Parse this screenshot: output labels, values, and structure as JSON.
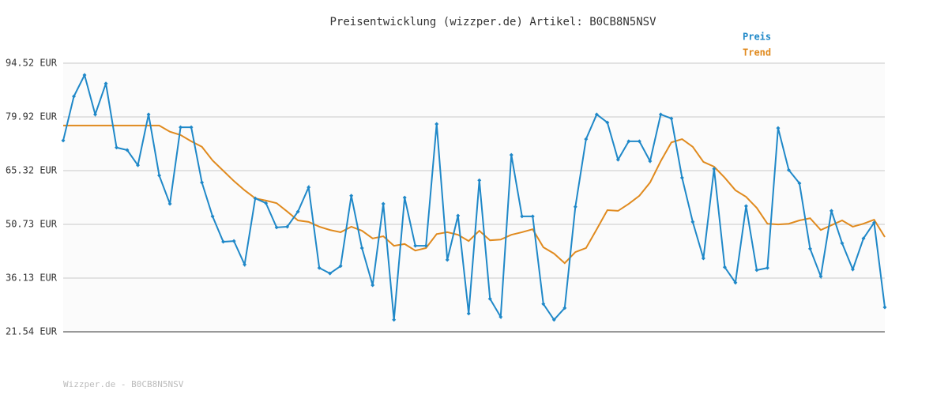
{
  "chart_data": {
    "type": "line",
    "title": "Preisentwicklung (wizzper.de) Artikel: B0CB8N5NSV",
    "footer": "Wizzper.de - B0CB8N5NSV",
    "ylim": [
      21.54,
      94.52
    ],
    "yticks": [
      {
        "value": 21.54,
        "label": "21.54 EUR"
      },
      {
        "value": 36.13,
        "label": "36.13 EUR"
      },
      {
        "value": 50.73,
        "label": "50.73 EUR"
      },
      {
        "value": 65.32,
        "label": "65.32 EUR"
      },
      {
        "value": 79.92,
        "label": "79.92 EUR"
      },
      {
        "value": 94.52,
        "label": "94.52 EUR"
      }
    ],
    "grid": true,
    "legend": "top-right",
    "series": [
      {
        "name": "Preis",
        "color": "#1f88c8",
        "markers": true,
        "values": [
          73.5,
          85.5,
          91.3,
          80.6,
          89.0,
          71.6,
          70.9,
          66.8,
          80.6,
          64.0,
          56.3,
          77.1,
          77.1,
          62.1,
          52.9,
          46.0,
          46.2,
          39.8,
          57.8,
          56.5,
          49.9,
          50.1,
          54.2,
          60.8,
          38.9,
          37.4,
          39.4,
          58.5,
          44.3,
          34.2,
          56.3,
          24.8,
          58.0,
          44.9,
          44.9,
          78.0,
          41.1,
          53.1,
          26.5,
          62.7,
          30.5,
          25.6,
          69.6,
          52.9,
          52.9,
          29.1,
          24.8,
          28.0,
          55.5,
          73.9,
          80.6,
          78.4,
          68.3,
          73.3,
          73.3,
          67.9,
          80.6,
          79.5,
          63.4,
          51.4,
          41.5,
          65.8,
          39.1,
          34.9,
          55.7,
          38.3,
          38.9,
          76.9,
          65.5,
          61.9,
          44.1,
          36.6,
          54.4,
          45.6,
          38.5,
          46.9,
          51.2,
          28.2
        ]
      },
      {
        "name": "Trend",
        "color": "#e08a1e",
        "markers": false,
        "values": [
          77.6,
          77.6,
          77.6,
          77.6,
          77.6,
          77.6,
          77.6,
          77.6,
          77.6,
          77.6,
          75.9,
          75.0,
          73.3,
          71.8,
          68.1,
          65.3,
          62.5,
          60.0,
          57.8,
          57.2,
          56.5,
          54.2,
          51.8,
          51.4,
          50.1,
          49.2,
          48.6,
          50.1,
          49.0,
          46.9,
          47.5,
          44.9,
          45.4,
          43.6,
          44.3,
          48.1,
          48.6,
          47.9,
          46.2,
          49.0,
          46.4,
          46.6,
          47.9,
          48.6,
          49.4,
          44.5,
          42.8,
          40.2,
          43.2,
          44.3,
          49.4,
          54.6,
          54.4,
          56.3,
          58.5,
          62.1,
          67.9,
          73.0,
          73.9,
          71.8,
          67.7,
          66.4,
          63.4,
          60.0,
          58.2,
          55.2,
          50.9,
          50.7,
          50.9,
          51.8,
          52.4,
          49.2,
          50.5,
          51.8,
          50.1,
          50.9,
          52.0,
          47.3
        ]
      }
    ]
  }
}
